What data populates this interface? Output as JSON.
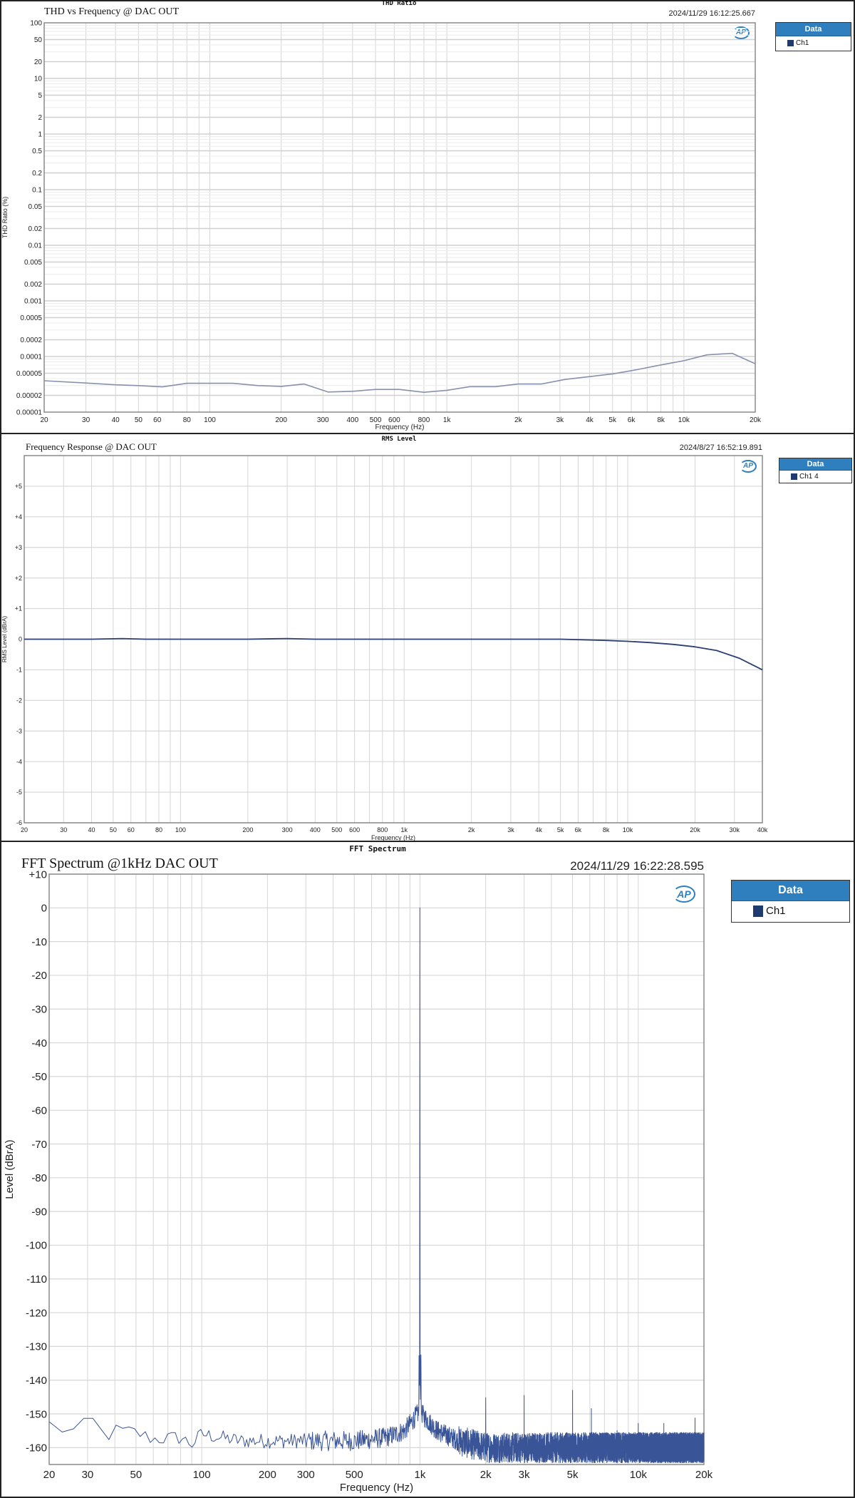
{
  "chart_data": [
    {
      "type": "line",
      "panel_label": "THD Ratio",
      "title": "THD vs Frequency @ DAC OUT",
      "timestamp": "2024/11/29 16:12:25.667",
      "legend": {
        "header": "Data",
        "entries": [
          "Ch1"
        ],
        "placement": "right-outside"
      },
      "xlabel": "Frequency (Hz)",
      "ylabel": "THD Ratio (%)",
      "x_scale": "log",
      "y_scale": "log",
      "xlim": [
        20,
        20000
      ],
      "ylim": [
        1e-05,
        100
      ],
      "grid": true,
      "x_ticks": [
        [
          20,
          "20"
        ],
        [
          30,
          "30"
        ],
        [
          40,
          "40"
        ],
        [
          50,
          "50"
        ],
        [
          60,
          "60"
        ],
        [
          80,
          "80"
        ],
        [
          100,
          "100"
        ],
        [
          200,
          "200"
        ],
        [
          300,
          "300"
        ],
        [
          400,
          "400"
        ],
        [
          500,
          "500"
        ],
        [
          600,
          "600"
        ],
        [
          800,
          "800"
        ],
        [
          1000,
          "1k"
        ],
        [
          2000,
          "2k"
        ],
        [
          3000,
          "3k"
        ],
        [
          4000,
          "4k"
        ],
        [
          5000,
          "5k"
        ],
        [
          6000,
          "6k"
        ],
        [
          8000,
          "8k"
        ],
        [
          10000,
          "10k"
        ],
        [
          20000,
          "20k"
        ]
      ],
      "y_ticks": [
        [
          100,
          "100"
        ],
        [
          50,
          "50"
        ],
        [
          20,
          "20"
        ],
        [
          10,
          "10"
        ],
        [
          5,
          "5"
        ],
        [
          2,
          "2"
        ],
        [
          1,
          "1"
        ],
        [
          0.5,
          "0.5"
        ],
        [
          0.2,
          "0.2"
        ],
        [
          0.1,
          "0.1"
        ],
        [
          0.05,
          "0.05"
        ],
        [
          0.02,
          "0.02"
        ],
        [
          0.01,
          "0.01"
        ],
        [
          0.005,
          "0.005"
        ],
        [
          0.002,
          "0.002"
        ],
        [
          0.001,
          "0.001"
        ],
        [
          0.0005,
          "0.0005"
        ],
        [
          0.0002,
          "0.0002"
        ],
        [
          0.0001,
          "0.0001"
        ],
        [
          5e-05,
          "0.00005"
        ],
        [
          2e-05,
          "0.00002"
        ],
        [
          1e-05,
          "0.00001"
        ]
      ],
      "series": [
        {
          "name": "Ch1",
          "color": "#8790ad",
          "x": [
            20,
            30,
            40,
            50,
            63,
            80,
            100,
            125,
            160,
            200,
            250,
            315,
            400,
            500,
            630,
            800,
            1000,
            1250,
            1600,
            2000,
            2500,
            3150,
            4000,
            5000,
            6300,
            8000,
            10000,
            12500,
            16000,
            20000
          ],
          "y": [
            3.67e-05,
            3.33e-05,
            3.1e-05,
            3e-05,
            2.84e-05,
            3.3e-05,
            3.3e-05,
            3.3e-05,
            3e-05,
            2.9e-05,
            3.2e-05,
            2.3e-05,
            2.37e-05,
            2.56e-05,
            2.56e-05,
            2.27e-05,
            2.47e-05,
            2.87e-05,
            2.87e-05,
            3.2e-05,
            3.2e-05,
            3.87e-05,
            4.35e-05,
            4.86e-05,
            5.77e-05,
            7.05e-05,
            8.4e-05,
            0.000107,
            0.000114,
            7.4e-05
          ]
        }
      ]
    },
    {
      "type": "line",
      "panel_label": "RMS Level",
      "title": "Frequency Response @ DAC OUT",
      "timestamp": "2024/8/27 16:52:19.891",
      "legend": {
        "header": "Data",
        "entries": [
          "Ch1 4"
        ],
        "placement": "right-outside"
      },
      "xlabel": "Frequency (Hz)",
      "ylabel": "RMS Level (dBrA)",
      "x_scale": "log",
      "y_scale": "linear",
      "xlim": [
        20,
        40000
      ],
      "ylim": [
        -6,
        6
      ],
      "grid": true,
      "x_ticks": [
        [
          20,
          "20"
        ],
        [
          30,
          "30"
        ],
        [
          40,
          "40"
        ],
        [
          50,
          "50"
        ],
        [
          60,
          "60"
        ],
        [
          80,
          "80"
        ],
        [
          100,
          "100"
        ],
        [
          200,
          "200"
        ],
        [
          300,
          "300"
        ],
        [
          400,
          "400"
        ],
        [
          500,
          "500"
        ],
        [
          600,
          "600"
        ],
        [
          800,
          "800"
        ],
        [
          1000,
          "1k"
        ],
        [
          2000,
          "2k"
        ],
        [
          3000,
          "3k"
        ],
        [
          4000,
          "4k"
        ],
        [
          5000,
          "5k"
        ],
        [
          6000,
          "6k"
        ],
        [
          8000,
          "8k"
        ],
        [
          10000,
          "10k"
        ],
        [
          20000,
          "20k"
        ],
        [
          30000,
          "30k"
        ],
        [
          40000,
          "40k"
        ]
      ],
      "y_ticks": [
        [
          5,
          "+5"
        ],
        [
          4,
          "+4"
        ],
        [
          3,
          "+3"
        ],
        [
          2,
          "+2"
        ],
        [
          1,
          "+1"
        ],
        [
          0,
          "0"
        ],
        [
          -1,
          "-1"
        ],
        [
          -2,
          "-2"
        ],
        [
          -3,
          "-3"
        ],
        [
          -4,
          "-4"
        ],
        [
          -5,
          "-5"
        ],
        [
          -6,
          "-6"
        ]
      ],
      "series": [
        {
          "name": "Ch1 4",
          "color": "#2b3f75",
          "x": [
            20,
            40,
            55,
            70,
            100,
            200,
            300,
            400,
            1000,
            2000,
            5000,
            8000,
            10000,
            12500,
            16000,
            20000,
            25000,
            31500,
            40000
          ],
          "y": [
            0,
            0,
            0.02,
            0,
            0,
            0,
            0.02,
            0,
            0,
            0,
            0,
            -0.04,
            -0.07,
            -0.11,
            -0.17,
            -0.25,
            -0.37,
            -0.62,
            -1.0
          ]
        }
      ]
    },
    {
      "type": "line",
      "panel_label": "FFT Spectrum",
      "title": "FFT Spectrum @1kHz DAC OUT",
      "timestamp": "2024/11/29 16:22:28.595",
      "legend": {
        "header": "Data",
        "entries": [
          "Ch1"
        ],
        "placement": "right-outside"
      },
      "xlabel": "Frequency (Hz)",
      "ylabel": "Level (dBrA)",
      "x_scale": "log",
      "y_scale": "linear",
      "xlim": [
        20,
        20000
      ],
      "ylim": [
        -165,
        10
      ],
      "grid": true,
      "x_ticks": [
        [
          20,
          "20"
        ],
        [
          30,
          "30"
        ],
        [
          50,
          "50"
        ],
        [
          100,
          "100"
        ],
        [
          200,
          "200"
        ],
        [
          300,
          "300"
        ],
        [
          500,
          "500"
        ],
        [
          1000,
          "1k"
        ],
        [
          2000,
          "2k"
        ],
        [
          3000,
          "3k"
        ],
        [
          5000,
          "5k"
        ],
        [
          10000,
          "10k"
        ],
        [
          20000,
          "20k"
        ]
      ],
      "y_ticks": [
        [
          10,
          "+10"
        ],
        [
          0,
          "0"
        ],
        [
          -10,
          "-10"
        ],
        [
          -20,
          "-20"
        ],
        [
          -30,
          "-30"
        ],
        [
          -40,
          "-40"
        ],
        [
          -50,
          "-50"
        ],
        [
          -60,
          "-60"
        ],
        [
          -70,
          "-70"
        ],
        [
          -80,
          "-80"
        ],
        [
          -90,
          "-90"
        ],
        [
          -100,
          "-100"
        ],
        [
          -110,
          "-110"
        ],
        [
          -120,
          "-120"
        ],
        [
          -130,
          "-130"
        ],
        [
          -140,
          "-140"
        ],
        [
          -150,
          "-150"
        ],
        [
          -160,
          "-160"
        ]
      ],
      "series": [
        {
          "name": "Ch1",
          "color": "#3a5597",
          "noise_floor": {
            "x": [
              20,
              25,
              32,
              36,
              40,
              50,
              60,
              80,
              90,
              100,
              150,
              200,
              300,
              500,
              700,
              850,
              950,
              1000,
              1050,
              1200,
              1500,
              2000,
              5000,
              20000
            ],
            "y": [
              -153,
              -155.5,
              -152,
              -157,
              -155,
              -155.5,
              -157.5,
              -157,
              -159,
              -156,
              -158,
              -158,
              -158,
              -158,
              -157,
              -155,
              -151,
              -149,
              -151,
              -155,
              -158,
              -160,
              -160,
              -160
            ]
          },
          "peaks": {
            "x": [
              1000,
              2000,
              3000,
              4400,
              5000,
              6100,
              8000,
              10000,
              13100,
              18200
            ],
            "y": [
              0,
              -145.2,
              -144.5,
              -156,
              -143,
              -148.4,
              -154.9,
              -152.8,
              -152.8,
              -151.2
            ]
          }
        }
      ]
    }
  ]
}
